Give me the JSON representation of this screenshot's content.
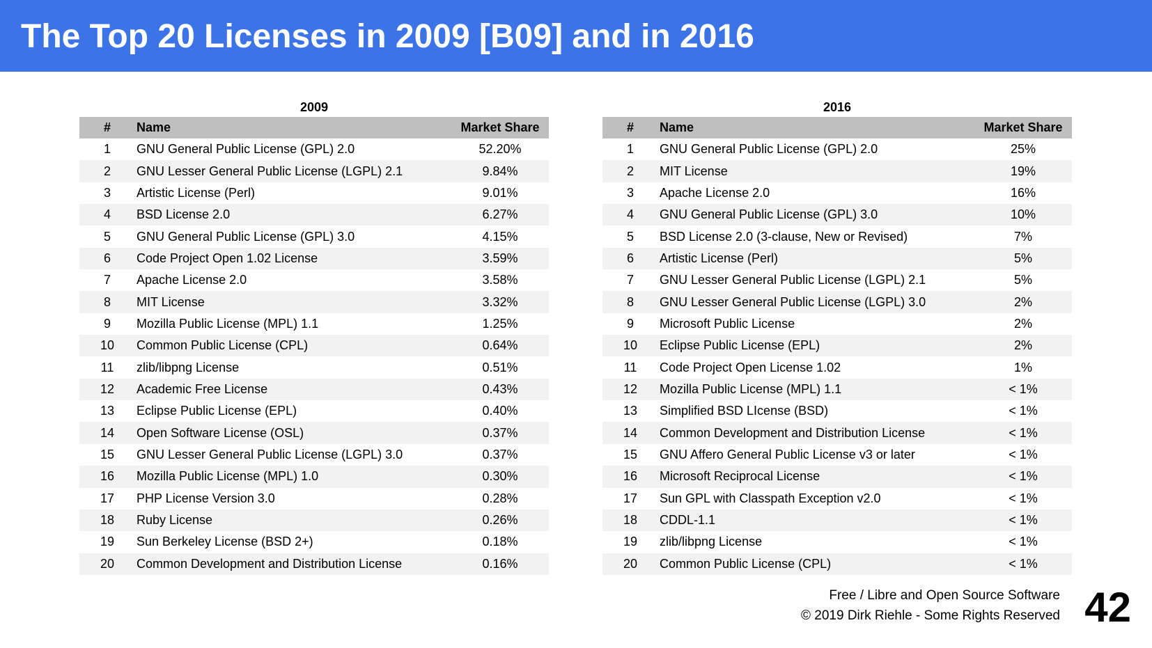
{
  "title": "The Top 20 Licenses in 2009 [B09] and in 2016",
  "columns": {
    "num": "#",
    "name": "Name",
    "share": "Market Share"
  },
  "table2009": {
    "year": "2009",
    "rows": [
      {
        "num": "1",
        "name": "GNU General Public License (GPL) 2.0",
        "share": "52.20%"
      },
      {
        "num": "2",
        "name": "GNU Lesser General Public License (LGPL) 2.1",
        "share": "9.84%"
      },
      {
        "num": "3",
        "name": "Artistic License (Perl)",
        "share": "9.01%"
      },
      {
        "num": "4",
        "name": "BSD License 2.0",
        "share": "6.27%"
      },
      {
        "num": "5",
        "name": "GNU General Public License (GPL) 3.0",
        "share": "4.15%"
      },
      {
        "num": "6",
        "name": "Code Project Open 1.02 License",
        "share": "3.59%"
      },
      {
        "num": "7",
        "name": "Apache License 2.0",
        "share": "3.58%"
      },
      {
        "num": "8",
        "name": "MIT License",
        "share": "3.32%"
      },
      {
        "num": "9",
        "name": "Mozilla Public License (MPL) 1.1",
        "share": "1.25%"
      },
      {
        "num": "10",
        "name": "Common Public License (CPL)",
        "share": "0.64%"
      },
      {
        "num": "11",
        "name": "zlib/libpng License",
        "share": "0.51%"
      },
      {
        "num": "12",
        "name": "Academic Free License",
        "share": "0.43%"
      },
      {
        "num": "13",
        "name": "Eclipse Public License (EPL)",
        "share": "0.40%"
      },
      {
        "num": "14",
        "name": "Open Software License (OSL)",
        "share": "0.37%"
      },
      {
        "num": "15",
        "name": "GNU Lesser General Public License (LGPL) 3.0",
        "share": "0.37%"
      },
      {
        "num": "16",
        "name": "Mozilla Public License (MPL) 1.0",
        "share": "0.30%"
      },
      {
        "num": "17",
        "name": "PHP License Version 3.0",
        "share": "0.28%"
      },
      {
        "num": "18",
        "name": "Ruby License",
        "share": "0.26%"
      },
      {
        "num": "19",
        "name": "Sun Berkeley License (BSD 2+)",
        "share": "0.18%"
      },
      {
        "num": "20",
        "name": "Common Development and Distribution License",
        "share": "0.16%"
      }
    ]
  },
  "table2016": {
    "year": "2016",
    "rows": [
      {
        "num": "1",
        "name": "GNU General Public License (GPL) 2.0",
        "share": "25%"
      },
      {
        "num": "2",
        "name": "MIT License",
        "share": "19%"
      },
      {
        "num": "3",
        "name": "Apache License 2.0",
        "share": "16%"
      },
      {
        "num": "4",
        "name": "GNU General Public License (GPL) 3.0",
        "share": "10%"
      },
      {
        "num": "5",
        "name": "BSD License 2.0 (3-clause, New or Revised)",
        "share": "7%"
      },
      {
        "num": "6",
        "name": "Artistic License (Perl)",
        "share": "5%"
      },
      {
        "num": "7",
        "name": "GNU Lesser General Public License (LGPL) 2.1",
        "share": "5%"
      },
      {
        "num": "8",
        "name": "GNU Lesser General Public License (LGPL) 3.0",
        "share": "2%"
      },
      {
        "num": "9",
        "name": "Microsoft Public License",
        "share": "2%"
      },
      {
        "num": "10",
        "name": "Eclipse Public License (EPL)",
        "share": "2%"
      },
      {
        "num": "11",
        "name": "Code Project Open License 1.02",
        "share": "1%"
      },
      {
        "num": "12",
        "name": "Mozilla Public License (MPL) 1.1",
        "share": "< 1%"
      },
      {
        "num": "13",
        "name": "Simplified BSD LIcense (BSD)",
        "share": "< 1%"
      },
      {
        "num": "14",
        "name": "Common Development and Distribution License",
        "share": "< 1%"
      },
      {
        "num": "15",
        "name": "GNU Affero General Public License v3 or later",
        "share": "< 1%"
      },
      {
        "num": "16",
        "name": "Microsoft Reciprocal License",
        "share": "< 1%"
      },
      {
        "num": "17",
        "name": "Sun GPL with Classpath Exception v2.0",
        "share": "< 1%"
      },
      {
        "num": "18",
        "name": "CDDL-1.1",
        "share": "< 1%"
      },
      {
        "num": "19",
        "name": "zlib/libpng License",
        "share": "< 1%"
      },
      {
        "num": "20",
        "name": "Common Public License (CPL)",
        "share": "< 1%"
      }
    ]
  },
  "footer": {
    "line1": "Free / Libre and Open Source Software",
    "line2": "© 2019 Dirk Riehle - Some Rights Reserved",
    "page_number": "42"
  },
  "colors": {
    "banner": "#3c74e8",
    "header_row": "#bfbfbf",
    "alt_row": "#f2f2f2"
  }
}
